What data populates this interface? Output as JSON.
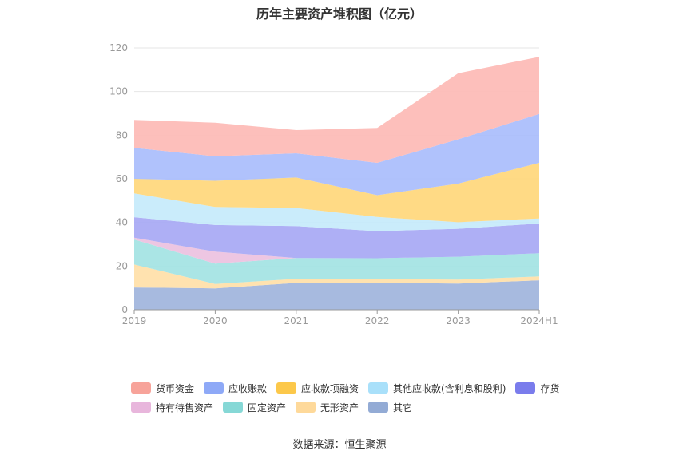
{
  "chart_data": {
    "type": "area",
    "stacked": true,
    "title": "历年主要资产堆积图（亿元）",
    "x": [
      "2019",
      "2020",
      "2021",
      "2022",
      "2023",
      "2024H1"
    ],
    "ylim": [
      0,
      120
    ],
    "yticks": [
      0,
      20,
      40,
      60,
      80,
      100,
      120
    ],
    "grid": true,
    "legend_position": "bottom",
    "series": [
      {
        "name": "其它",
        "color": "#9fb4dc",
        "values": [
          10.2,
          9.8,
          12.3,
          12.3,
          12.0,
          13.5
        ]
      },
      {
        "name": "无形资产",
        "color": "#ffdfa8",
        "values": [
          10.5,
          2.0,
          1.9,
          1.8,
          1.8,
          1.8
        ]
      },
      {
        "name": "固定资产",
        "color": "#a3e3e3",
        "values": [
          11.5,
          9.3,
          9.5,
          9.5,
          10.5,
          10.6
        ]
      },
      {
        "name": "持有待售资产",
        "color": "#ecc1e0",
        "values": [
          0.8,
          5.5,
          0.0,
          0.0,
          0.0,
          0.0
        ]
      },
      {
        "name": "存货",
        "color": "#a7a8f4",
        "values": [
          9.4,
          12.2,
          14.6,
          12.4,
          12.8,
          13.6
        ]
      },
      {
        "name": "其他应收款(含利息和股利)",
        "color": "#c6eafb",
        "values": [
          10.9,
          8.3,
          8.3,
          6.5,
          3.0,
          2.3
        ]
      },
      {
        "name": "应收款项融资",
        "color": "#ffd77b",
        "values": [
          6.7,
          12.0,
          14.0,
          10.0,
          17.7,
          25.5
        ]
      },
      {
        "name": "应收账款",
        "color": "#a9bdfc",
        "values": [
          14.2,
          11.2,
          11.1,
          14.8,
          20.3,
          22.4
        ]
      },
      {
        "name": "货币资金",
        "color": "#fdbab5",
        "values": [
          12.8,
          15.4,
          10.6,
          16.0,
          30.3,
          26.2
        ]
      }
    ],
    "legend": [
      {
        "name": "货币资金",
        "color": "#f7a39a"
      },
      {
        "name": "应收账款",
        "color": "#8ea9f7"
      },
      {
        "name": "应收款项融资",
        "color": "#fcc84a"
      },
      {
        "name": "其他应收款(含利息和股利)",
        "color": "#a9e0fa"
      },
      {
        "name": "存货",
        "color": "#7a7cec"
      },
      {
        "name": "持有待售资产",
        "color": "#e8b6dc"
      },
      {
        "name": "固定资产",
        "color": "#86d8d6"
      },
      {
        "name": "无形资产",
        "color": "#fed99a"
      },
      {
        "name": "其它",
        "color": "#93abd5"
      }
    ]
  },
  "source": "数据来源：恒生聚源"
}
